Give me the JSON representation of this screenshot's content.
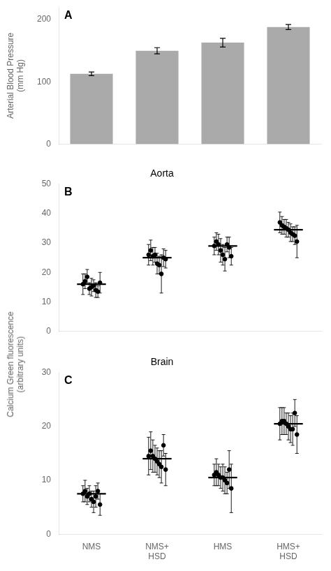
{
  "chart_data": [
    {
      "type": "bar",
      "annotations": [
        "A"
      ],
      "ylabel": "Arterial Blood Pressure\n(mm Hg)",
      "categories": [
        null,
        null,
        null,
        null
      ],
      "values": [
        113,
        150,
        163,
        188
      ],
      "errors": [
        3,
        5,
        7,
        4
      ],
      "color": "#aaaaaa",
      "ylim": [
        0,
        220
      ],
      "yticks": [
        0,
        100,
        200
      ],
      "grid": false
    },
    {
      "type": "scatter",
      "title": "Aorta",
      "annotations": [
        "B"
      ],
      "categories": [
        null,
        null,
        null,
        null
      ],
      "series": [
        {
          "type": "scatter",
          "color": "#000000",
          "marker": "o",
          "values": [
            [
              16.0,
              17.0,
              18.5,
              14.5,
              15.0,
              15.5,
              14.0,
              13.5,
              16.5
            ],
            [
              26.0,
              27.5,
              25.5,
              26.0,
              23.0,
              22.5,
              19.5,
              25.0,
              24.5
            ],
            [
              29.0,
              30.5,
              29.5,
              27.5,
              26.0,
              24.5,
              29.5,
              28.5,
              25.5
            ],
            [
              37.0,
              36.0,
              35.5,
              35.0,
              34.5,
              33.5,
              33.0,
              32.5,
              30.5
            ]
          ],
          "errors": [
            [
              3.5,
              2.5,
              2.5,
              2.0,
              3.0,
              2.0,
              2.5,
              2.0,
              3.5
            ],
            [
              3.5,
              3.5,
              3.0,
              2.5,
              3.5,
              3.0,
              6.5,
              3.0,
              3.0
            ],
            [
              3.0,
              3.0,
              3.5,
              4.0,
              3.5,
              4.0,
              2.5,
              3.5,
              3.0
            ],
            [
              3.5,
              3.0,
              2.5,
              3.0,
              2.5,
              3.0,
              2.5,
              3.0,
              5.5
            ]
          ]
        },
        {
          "type": "line",
          "color": "#000000",
          "values": [
            16.0,
            25.0,
            29.0,
            34.5
          ]
        }
      ],
      "ylim": [
        0,
        50
      ],
      "yticks": [
        0,
        10,
        20,
        30,
        40,
        50
      ],
      "grid": false
    },
    {
      "type": "scatter",
      "title": "Brain",
      "annotations": [
        "C"
      ],
      "categories": [
        "NMS",
        "NMS+\nHSD",
        "HMS",
        "HMS+\nHSD"
      ],
      "series": [
        {
          "type": "scatter",
          "color": "#000000",
          "marker": "o",
          "values": [
            [
              7.5,
              8.0,
              7.0,
              7.5,
              6.5,
              6.0,
              7.0,
              8.0,
              5.5
            ],
            [
              14.5,
              15.5,
              14.5,
              14.0,
              13.5,
              13.0,
              12.5,
              16.5,
              12.0
            ],
            [
              11.0,
              11.5,
              11.0,
              10.5,
              10.5,
              10.0,
              9.5,
              12.0,
              8.5
            ],
            [
              20.5,
              21.0,
              21.0,
              20.5,
              20.0,
              19.5,
              19.5,
              22.5,
              18.5
            ]
          ],
          "errors": [
            [
              1.5,
              2.0,
              1.5,
              1.5,
              1.5,
              2.0,
              2.0,
              1.5,
              2.0
            ],
            [
              3.5,
              3.5,
              3.0,
              2.5,
              2.5,
              2.5,
              3.0,
              2.0,
              3.0
            ],
            [
              2.0,
              2.5,
              2.0,
              2.0,
              2.5,
              2.5,
              2.0,
              3.5,
              4.5
            ],
            [
              3.0,
              2.5,
              2.5,
              2.0,
              2.5,
              2.5,
              3.0,
              2.5,
              3.5
            ]
          ]
        },
        {
          "type": "line",
          "color": "#000000",
          "values": [
            7.5,
            14.0,
            10.5,
            20.5
          ]
        }
      ],
      "ylim": [
        0,
        30
      ],
      "yticks": [
        0,
        10,
        20,
        30
      ],
      "grid": false
    }
  ],
  "ylabel": "Calcium Green fluorescence\n(arbitrary units)"
}
